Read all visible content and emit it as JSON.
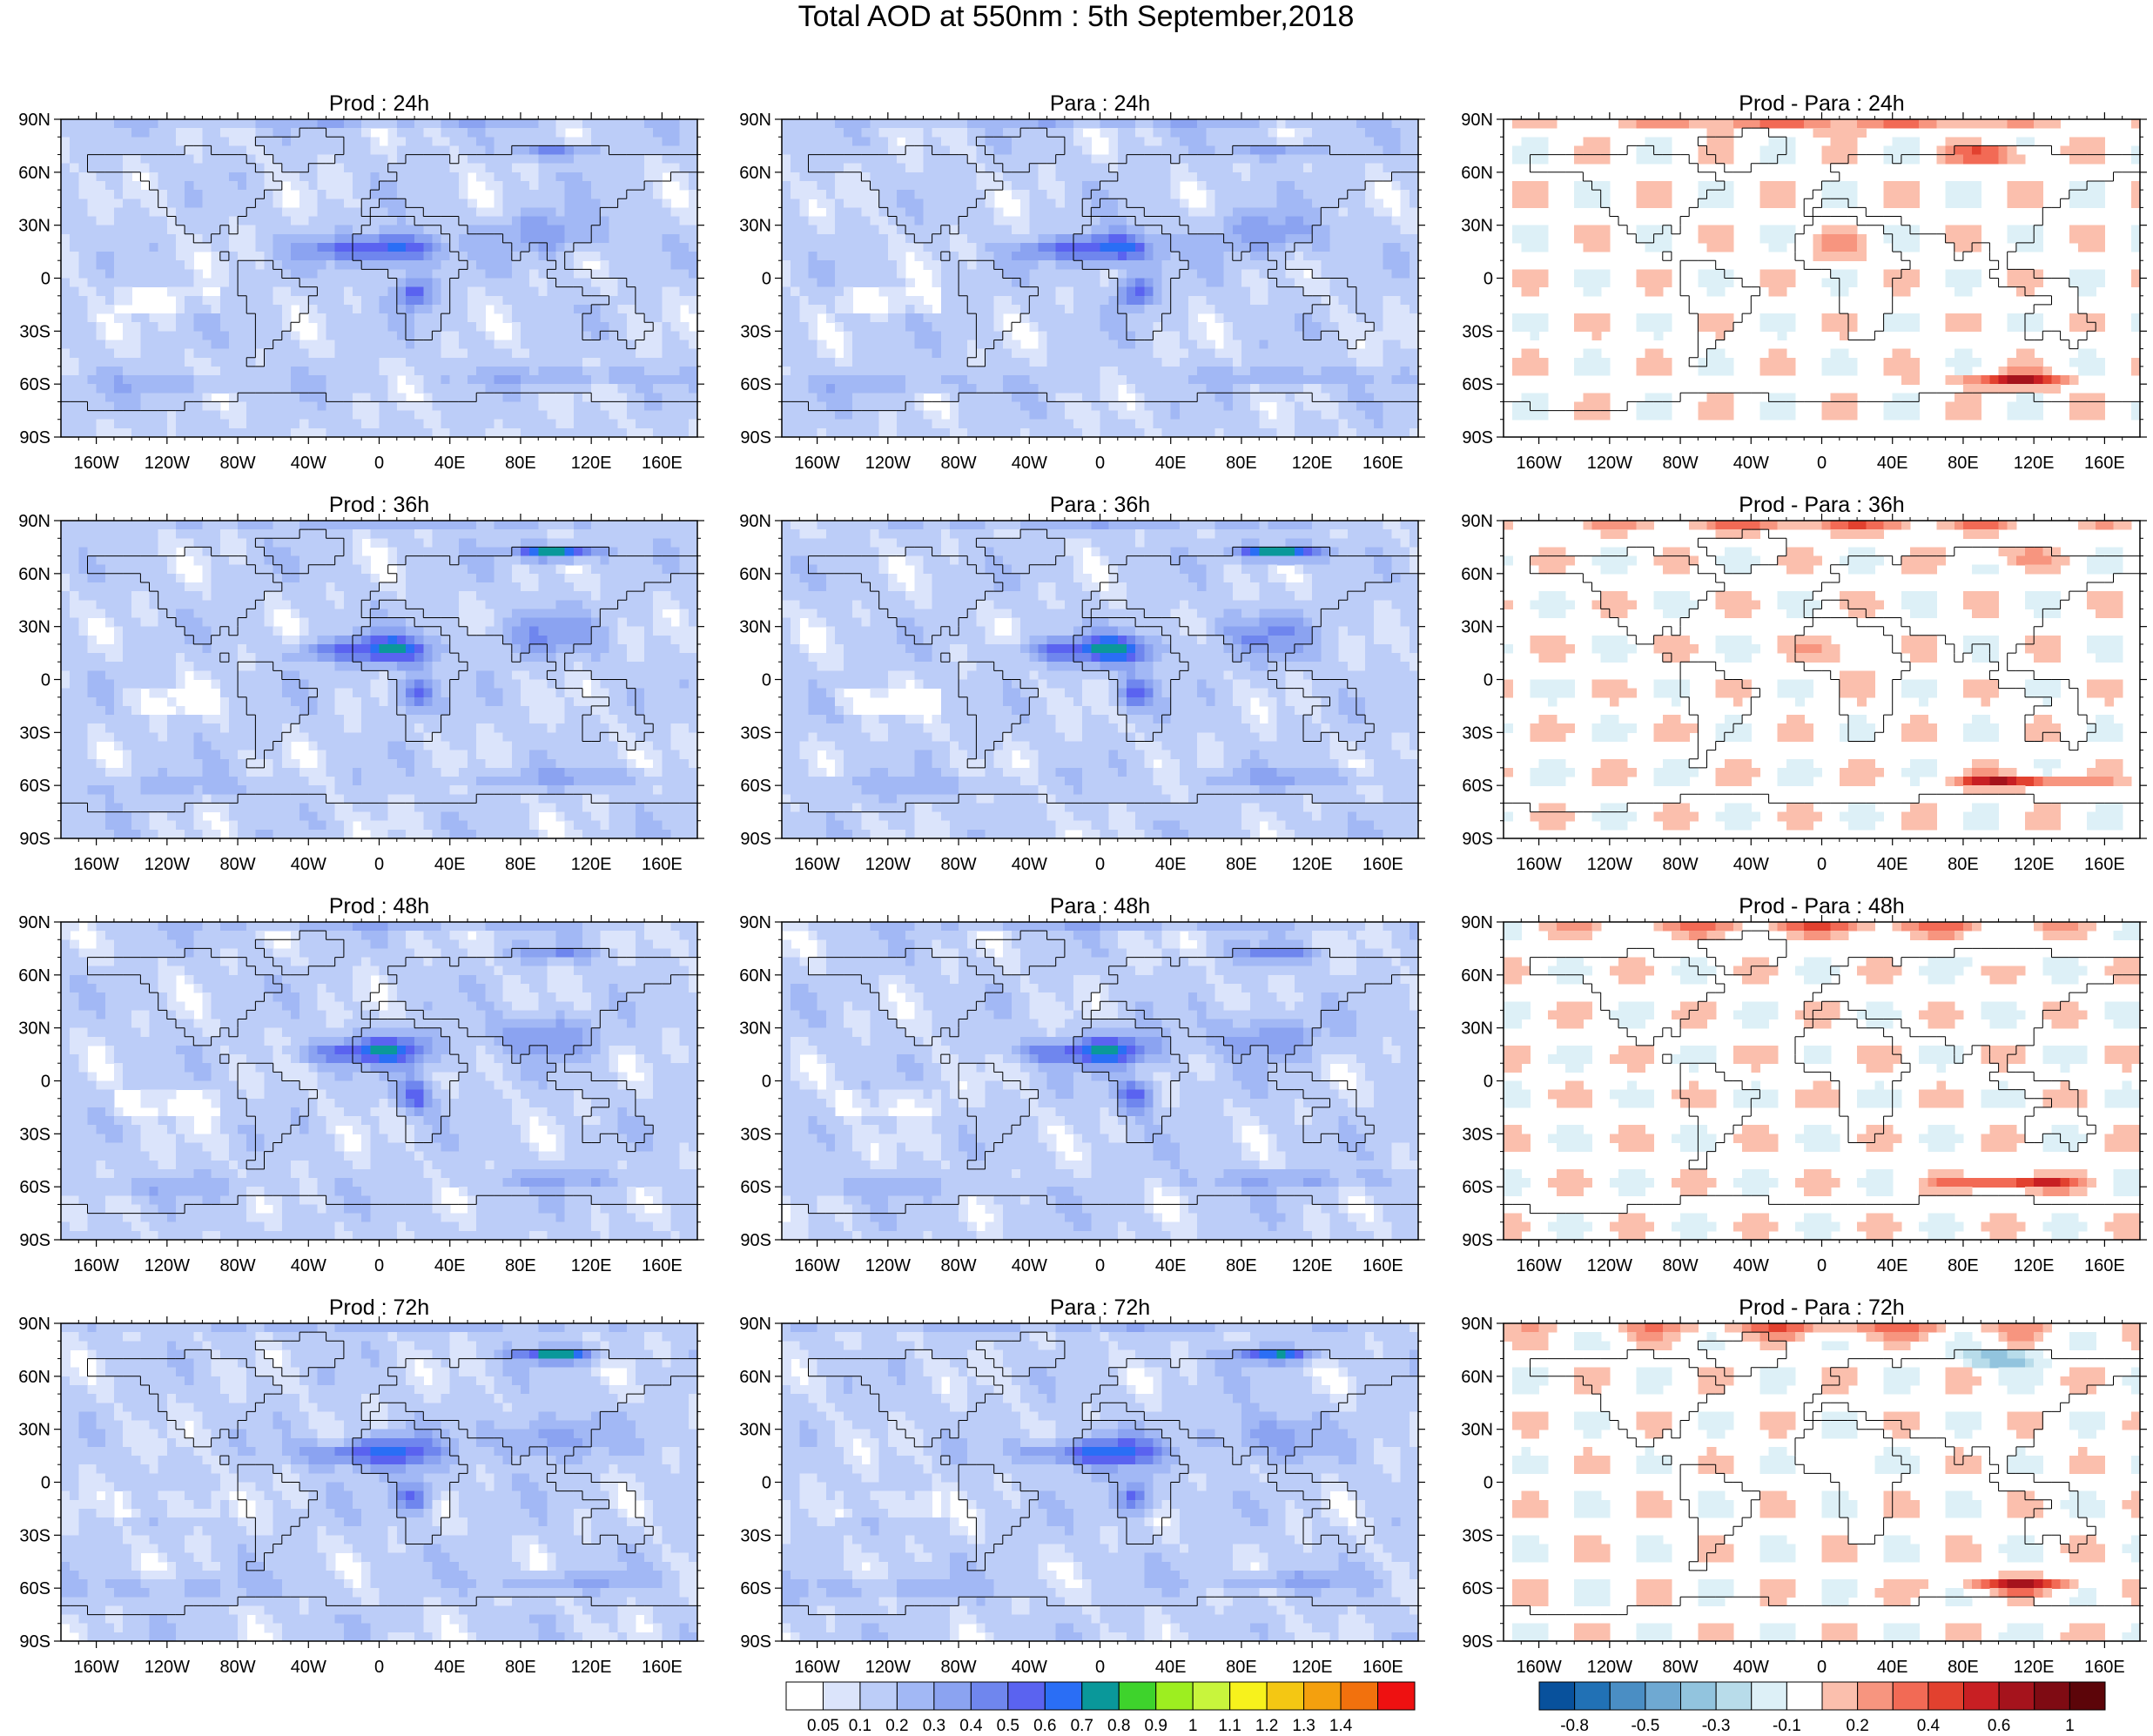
{
  "chart_data": {
    "type": "heatmap",
    "title": "Total AOD at 550nm : 5th September,2018",
    "grid": false,
    "x_ticks": [
      "160W",
      "120W",
      "80W",
      "40W",
      "0",
      "40E",
      "80E",
      "120E",
      "160E"
    ],
    "y_ticks": [
      "90N",
      "60N",
      "30N",
      "0",
      "30S",
      "60S",
      "90S"
    ],
    "xlim": [
      -180,
      180
    ],
    "ylim": [
      -90,
      90
    ],
    "rows": [
      "24h",
      "36h",
      "48h",
      "72h"
    ],
    "columns": [
      "Prod",
      "Para",
      "Prod - Para"
    ],
    "panels": [
      {
        "title": "Prod : 24h",
        "kind": "aod",
        "seed": 11
      },
      {
        "title": "Para : 24h",
        "kind": "aod",
        "seed": 12
      },
      {
        "title": "Prod - Para : 24h",
        "kind": "diff",
        "seed": 13
      },
      {
        "title": "Prod : 36h",
        "kind": "aod",
        "seed": 21
      },
      {
        "title": "Para : 36h",
        "kind": "aod",
        "seed": 22
      },
      {
        "title": "Prod - Para : 36h",
        "kind": "diff",
        "seed": 23
      },
      {
        "title": "Prod : 48h",
        "kind": "aod",
        "seed": 31
      },
      {
        "title": "Para : 48h",
        "kind": "aod",
        "seed": 32
      },
      {
        "title": "Prod - Para : 48h",
        "kind": "diff",
        "seed": 33
      },
      {
        "title": "Prod : 72h",
        "kind": "aod",
        "seed": 41
      },
      {
        "title": "Para : 72h",
        "kind": "aod",
        "seed": 42
      },
      {
        "title": "Prod - Para : 72h",
        "kind": "diff",
        "seed": 43
      }
    ],
    "aod_colorbar": {
      "levels": [
        0.05,
        0.1,
        0.2,
        0.3,
        0.4,
        0.5,
        0.6,
        0.7,
        0.8,
        0.9,
        1,
        1.1,
        1.2,
        1.3,
        1.4
      ],
      "labels": [
        "0.05",
        "0.1",
        "0.2",
        "0.3",
        "0.4",
        "0.5",
        "0.6",
        "0.7",
        "0.8",
        "0.9",
        "1",
        "1.1",
        "1.2",
        "1.3",
        "1.4"
      ],
      "colors": [
        "#ffffff",
        "#dbe4fb",
        "#bccdf8",
        "#a2b8f5",
        "#8ba3f1",
        "#6f86ee",
        "#5a63f0",
        "#2a6ef5",
        "#0a989a",
        "#3ed32c",
        "#9dee20",
        "#c8f53c",
        "#f7f21c",
        "#f4c713",
        "#f4a00e",
        "#f2710d",
        "#ee1111"
      ]
    },
    "diff_colorbar": {
      "labels": [
        "-0.8",
        "-0.5",
        "-0.3",
        "-0.1",
        "0.2",
        "0.4",
        "0.6",
        "1"
      ],
      "colors": [
        "#08519c",
        "#2171b5",
        "#4a8ec4",
        "#6fa9d2",
        "#92c4de",
        "#b8dcea",
        "#ddf0f7",
        "#ffffff",
        "#fbbfad",
        "#f7957f",
        "#f26a55",
        "#e2412f",
        "#c81f23",
        "#a5131c",
        "#7f0b13",
        "#5c0509"
      ]
    }
  }
}
